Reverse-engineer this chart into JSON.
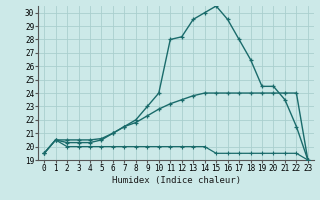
{
  "title": "",
  "xlabel": "Humidex (Indice chaleur)",
  "ylabel": "",
  "bg_color": "#cce9e8",
  "grid_color": "#aacfce",
  "line_color": "#1a6b6b",
  "xlim": [
    -0.5,
    23.5
  ],
  "ylim": [
    19,
    30.5
  ],
  "yticks": [
    19,
    20,
    21,
    22,
    23,
    24,
    25,
    26,
    27,
    28,
    29,
    30
  ],
  "xticks": [
    0,
    1,
    2,
    3,
    4,
    5,
    6,
    7,
    8,
    9,
    10,
    11,
    12,
    13,
    14,
    15,
    16,
    17,
    18,
    19,
    20,
    21,
    22,
    23
  ],
  "line1_x": [
    0,
    1,
    2,
    3,
    4,
    5,
    6,
    7,
    8,
    9,
    10,
    11,
    12,
    13,
    14,
    15,
    16,
    17,
    18,
    19,
    20,
    21,
    22,
    23
  ],
  "line1_y": [
    19.5,
    20.5,
    20.5,
    20.5,
    20.5,
    20.6,
    21.0,
    21.5,
    22.0,
    23.0,
    24.0,
    28.0,
    28.2,
    29.5,
    30.0,
    30.5,
    29.5,
    28.0,
    26.5,
    24.5,
    24.5,
    23.5,
    21.5,
    19.0
  ],
  "line2_x": [
    0,
    1,
    2,
    3,
    4,
    5,
    6,
    7,
    8,
    9,
    10,
    11,
    12,
    13,
    14,
    15,
    16,
    17,
    18,
    19,
    20,
    21,
    22,
    23
  ],
  "line2_y": [
    19.5,
    20.5,
    20.3,
    20.3,
    20.3,
    20.5,
    21.0,
    21.5,
    21.8,
    22.3,
    22.8,
    23.2,
    23.5,
    23.8,
    24.0,
    24.0,
    24.0,
    24.0,
    24.0,
    24.0,
    24.0,
    24.0,
    24.0,
    19.0
  ],
  "line3_x": [
    0,
    1,
    2,
    3,
    4,
    5,
    6,
    7,
    8,
    9,
    10,
    11,
    12,
    13,
    14,
    15,
    16,
    17,
    18,
    19,
    20,
    21,
    22,
    23
  ],
  "line3_y": [
    19.5,
    20.5,
    20.0,
    20.0,
    20.0,
    20.0,
    20.0,
    20.0,
    20.0,
    20.0,
    20.0,
    20.0,
    20.0,
    20.0,
    20.0,
    19.5,
    19.5,
    19.5,
    19.5,
    19.5,
    19.5,
    19.5,
    19.5,
    19.0
  ]
}
